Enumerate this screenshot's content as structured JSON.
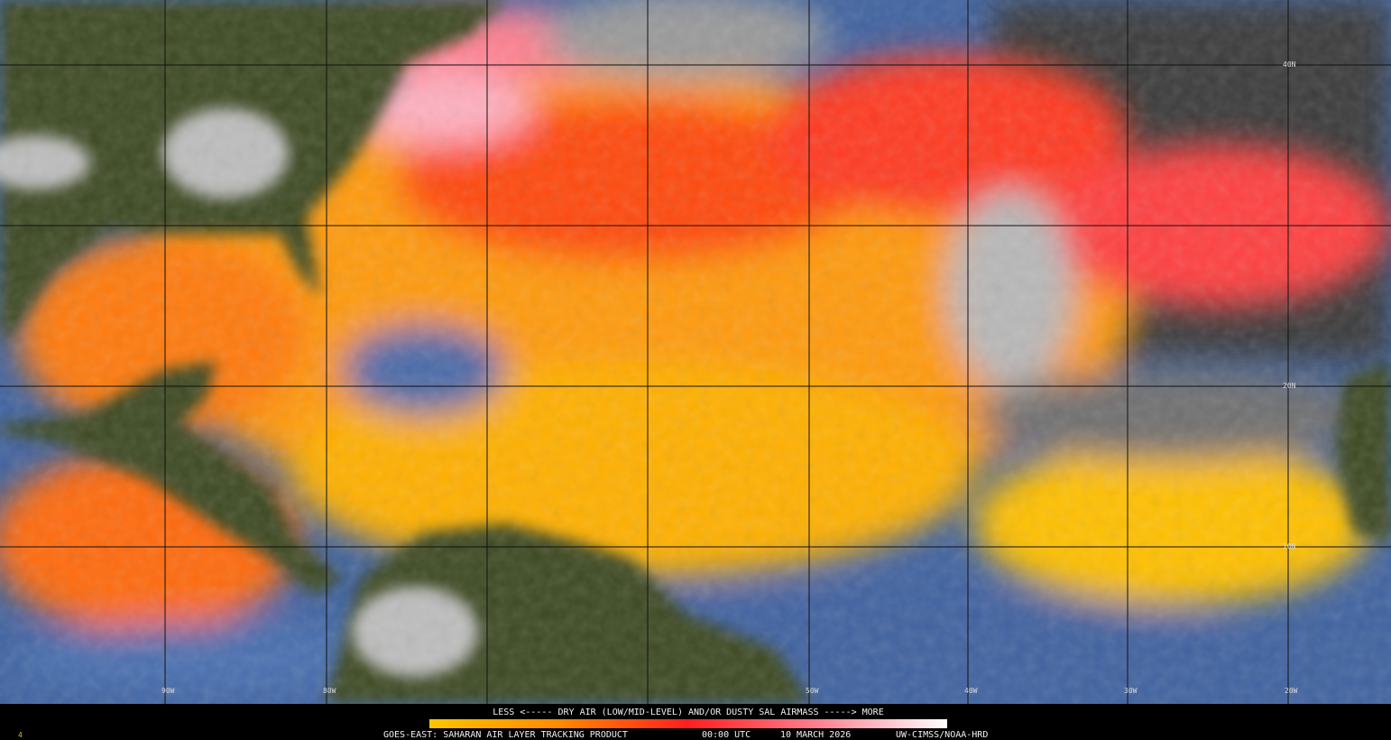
{
  "map": {
    "lat_labels": [
      "40N",
      "20N",
      "10N"
    ],
    "lon_labels": [
      "90W",
      "80W",
      "50W",
      "40W",
      "30W",
      "20W"
    ]
  },
  "legend": {
    "text": "LESS <----- DRY AIR (LOW/MID-LEVEL) AND/OR DUSTY SAL AIRMASS -----> MORE"
  },
  "footer": {
    "product": "GOES-EAST: SAHARAN AIR LAYER TRACKING PRODUCT",
    "time": "00:00 UTC",
    "date": "10 MARCH 2026",
    "source": "UW-CIMSS/NOAA-HRD"
  },
  "frame_number": "4"
}
